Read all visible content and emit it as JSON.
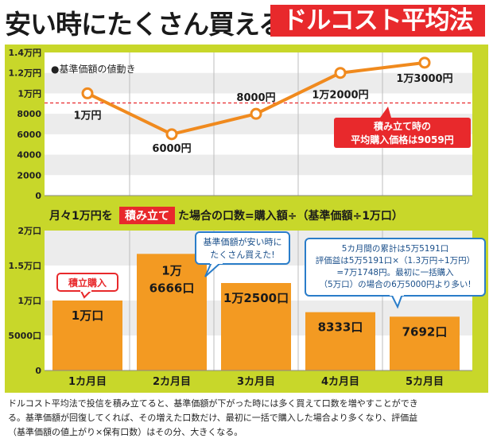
{
  "header": {
    "title": "安い時にたくさん買える",
    "badge": "ドルコスト平均法"
  },
  "colors": {
    "panel": "#c8d72a",
    "plot_bg": "#ffffff",
    "stripe": "#ececec",
    "line": "#f08a1e",
    "bar": "#f39a22",
    "accent_red": "#e8292c",
    "callout_blue": "#2a7dc9"
  },
  "chart_data": [
    {
      "type": "line",
      "title": "●基準価額の値動き",
      "categories": [
        "1カ月目",
        "2カ月目",
        "3カ月目",
        "4カ月目",
        "5カ月目"
      ],
      "values": [
        10000,
        6000,
        8000,
        12000,
        13000
      ],
      "point_labels": [
        "1万円",
        "6000円",
        "8000円",
        "1万2000円",
        "1万3000円"
      ],
      "ylim": [
        0,
        14000
      ],
      "y_ticks": [
        0,
        2000,
        4000,
        6000,
        8000,
        10000,
        12000,
        14000
      ],
      "y_tick_labels": [
        "0",
        "2000",
        "4000",
        "6000",
        "8000",
        "1万円",
        "1.2万円",
        "1.4万円"
      ],
      "average_line": {
        "value": 9059,
        "label_line1": "積み立て時の",
        "label_line2": "平均購入価格は9059円"
      }
    },
    {
      "type": "bar",
      "title_prefix": "月々1万円を",
      "title_highlight": "積み立て",
      "title_suffix": "た場合の口数=購入額÷（基準価額÷1万口）",
      "categories": [
        "1カ月目",
        "2カ月目",
        "3カ月目",
        "4カ月目",
        "5カ月目"
      ],
      "values": [
        10000,
        16666,
        12500,
        8333,
        7692
      ],
      "bar_labels": [
        [
          "1万口"
        ],
        [
          "1万",
          "6666口"
        ],
        [
          "1万2500口"
        ],
        [
          "8333口"
        ],
        [
          "7692口"
        ]
      ],
      "ylim": [
        0,
        20000
      ],
      "y_ticks": [
        0,
        5000,
        10000,
        15000,
        20000
      ],
      "y_tick_labels": [
        "0",
        "5000口",
        "1万口",
        "1.5万口",
        "2万口"
      ],
      "callouts": {
        "tsumitate": "積立購入",
        "cheap_line1": "基準価額が安い時に",
        "cheap_line2": "たくさん買えた!",
        "summary_line1": "5カ月間の累計は5万5191口",
        "summary_line2": "評価益は5万5191口×（1.3万円÷1万円）",
        "summary_line3": "=7万1748円。最初に一括購入",
        "summary_line4": "（5万口）の場合の6万5000円より多い!"
      }
    }
  ],
  "footer": {
    "line1": "ドルコスト平均法で投信を積み立てると、基準価額が下がった時には多く買えて口数を増やすことができ",
    "line2": "る。基準価額が回復してくれば、その増えた口数だけ、最初に一括で購入した場合より多くなり、評価益",
    "line3": "（基準価額の値上がり×保有口数）はその分、大きくなる。"
  }
}
